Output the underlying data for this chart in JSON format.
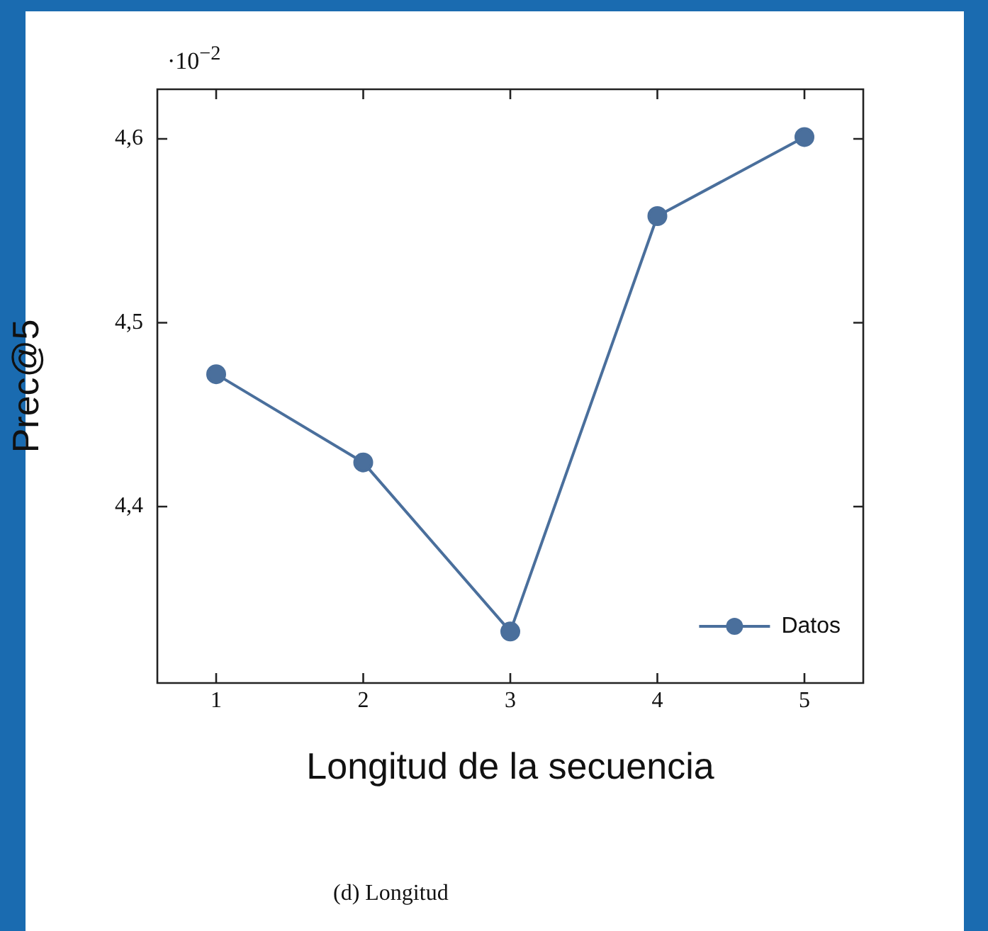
{
  "chart_data": {
    "type": "line",
    "xlabel": "Longitud de la secuencia",
    "ylabel": "Prec@5",
    "x": [
      1,
      2,
      3,
      4,
      5
    ],
    "series": [
      {
        "name": "Datos",
        "color": "#4a6f9c",
        "values": [
          4.472,
          4.424,
          4.332,
          4.558,
          4.601
        ]
      }
    ],
    "xlim": [
      0.6,
      5.4
    ],
    "xticks": [
      1,
      2,
      3,
      4,
      5
    ],
    "ylim": [
      4.304,
      4.627
    ],
    "yticks": [
      {
        "value": 4.4,
        "label": "4,4"
      },
      {
        "value": 4.5,
        "label": "4,5"
      },
      {
        "value": 4.6,
        "label": "4,6"
      }
    ],
    "grid": false,
    "legend": "bottom right",
    "marker": "circle",
    "line_style": "solid",
    "annotations": [
      "·10$^{−2}$",
      "(d) Longitud"
    ]
  }
}
